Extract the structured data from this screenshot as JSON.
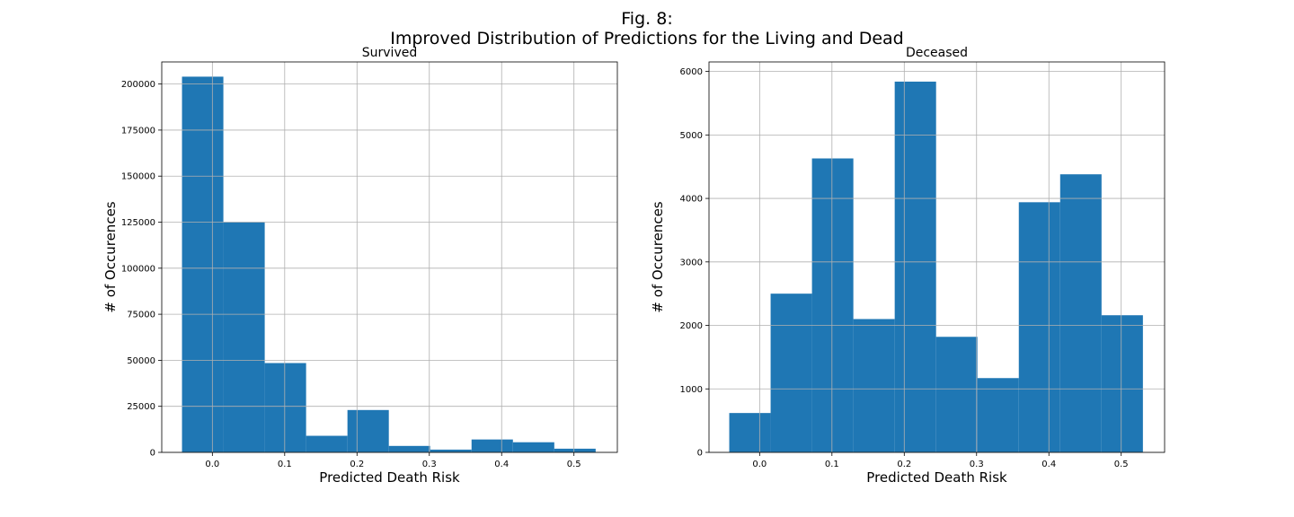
{
  "figure": {
    "title_line1": "Fig. 8:",
    "title_line2": "Improved Distribution of Predictions for the Living and Dead"
  },
  "colors": {
    "bar": "#1f77b4",
    "grid": "#b0b0b0",
    "axis": "#000000",
    "text": "#000000"
  },
  "chart_data": [
    {
      "type": "bar",
      "title": "Survived",
      "xlabel": "Predicted Death Risk",
      "ylabel": "# of Occurences",
      "grid": true,
      "xlim": [
        -0.07,
        0.56
      ],
      "ylim": [
        0,
        212000
      ],
      "xticks": [
        0.0,
        0.1,
        0.2,
        0.3,
        0.4,
        0.5
      ],
      "xtick_labels": [
        "0.0",
        "0.1",
        "0.2",
        "0.3",
        "0.4",
        "0.5"
      ],
      "yticks": [
        0,
        25000,
        50000,
        75000,
        100000,
        125000,
        150000,
        175000,
        200000
      ],
      "ytick_labels": [
        "0",
        "25000",
        "50000",
        "75000",
        "100000",
        "125000",
        "150000",
        "175000",
        "200000"
      ],
      "bin_edges": [
        -0.042,
        0.0152,
        0.0724,
        0.1296,
        0.1868,
        0.244,
        0.3012,
        0.3584,
        0.4156,
        0.4728,
        0.53
      ],
      "values": [
        204000,
        125000,
        48500,
        9000,
        23000,
        3500,
        1500,
        7000,
        5500,
        2000
      ]
    },
    {
      "type": "bar",
      "title": "Deceased",
      "xlabel": "Predicted Death Risk",
      "ylabel": "# of Occurences",
      "grid": true,
      "xlim": [
        -0.07,
        0.56
      ],
      "ylim": [
        0,
        6150
      ],
      "xticks": [
        0.0,
        0.1,
        0.2,
        0.3,
        0.4,
        0.5
      ],
      "xtick_labels": [
        "0.0",
        "0.1",
        "0.2",
        "0.3",
        "0.4",
        "0.5"
      ],
      "yticks": [
        0,
        1000,
        2000,
        3000,
        4000,
        5000,
        6000
      ],
      "ytick_labels": [
        "0",
        "1000",
        "2000",
        "3000",
        "4000",
        "5000",
        "6000"
      ],
      "bin_edges": [
        -0.042,
        0.0152,
        0.0724,
        0.1296,
        0.1868,
        0.244,
        0.3012,
        0.3584,
        0.4156,
        0.4728,
        0.53
      ],
      "values": [
        620,
        2500,
        4630,
        2100,
        5840,
        1820,
        1170,
        3940,
        4380,
        2160
      ]
    }
  ]
}
